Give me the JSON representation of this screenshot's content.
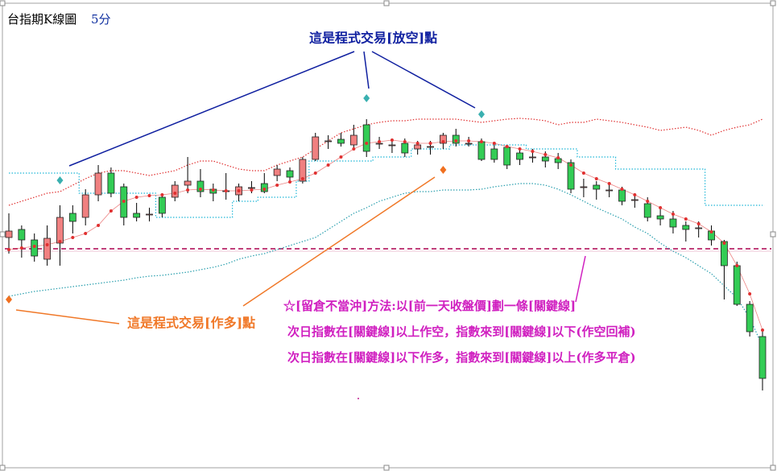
{
  "chart_data": {
    "type": "candlestick",
    "title": "台指期K線圖",
    "subtitle": "5分",
    "annotations": {
      "short_point": "這是程式交易[放空]點",
      "long_point": "這是程式交易[作多]點",
      "method": "☆[留倉不當沖]方法:以[前一天收盤價]劃一條[關鍵線]",
      "rule_short": "次日指數在[關鍵線]以上作空，指數來到[關鍵線]以下(作空回補)",
      "rule_long": "次日指數在[關鍵線]以下作多，指數來到[關鍵線]以上(作多平倉)"
    },
    "ylim": [
      0,
      590
    ],
    "categories": [
      null,
      null,
      null,
      null,
      null,
      null,
      null,
      null,
      null,
      null,
      null,
      null,
      null,
      null,
      null,
      null,
      null,
      null,
      null,
      null,
      null,
      null,
      null,
      null,
      null,
      null,
      null,
      null,
      null,
      null,
      null,
      null,
      null,
      null,
      null,
      null,
      null,
      null,
      null,
      null,
      null,
      null,
      null,
      null,
      null,
      null,
      null,
      null,
      null,
      null,
      null,
      null,
      null,
      null,
      null,
      null,
      null,
      null,
      null,
      null
    ],
    "up_color": "#f08080",
    "down_color": "#33cc55",
    "open": [
      295,
      305,
      292,
      268,
      288,
      325,
      320,
      348,
      375,
      358,
      325,
      324,
      345,
      345,
      360,
      365,
      355,
      353,
      348,
      357,
      362,
      372,
      378,
      365,
      392,
      415,
      417,
      410,
      435,
      412,
      410,
      412,
      405,
      408,
      412,
      422,
      412,
      414,
      405,
      407,
      400,
      395,
      395,
      393,
      388,
      358,
      360,
      354,
      354,
      342,
      337,
      322,
      318,
      310,
      307,
      303,
      290,
      260,
      212,
      172
    ],
    "high": [
      325,
      310,
      300,
      310,
      335,
      335,
      355,
      385,
      382,
      362,
      338,
      332,
      350,
      365,
      395,
      380,
      362,
      375,
      362,
      365,
      375,
      385,
      382,
      395,
      425,
      422,
      425,
      435,
      442,
      420,
      418,
      418,
      415,
      415,
      425,
      430,
      420,
      418,
      410,
      410,
      405,
      405,
      402,
      400,
      392,
      368,
      365,
      362,
      358,
      350,
      345,
      330,
      328,
      315,
      315,
      310,
      292,
      265,
      216,
      178
    ],
    "low": [
      275,
      270,
      265,
      260,
      260,
      300,
      310,
      340,
      345,
      310,
      315,
      315,
      320,
      340,
      350,
      345,
      340,
      342,
      340,
      350,
      350,
      365,
      365,
      362,
      390,
      405,
      408,
      405,
      395,
      405,
      400,
      395,
      398,
      398,
      405,
      408,
      408,
      390,
      388,
      380,
      385,
      388,
      382,
      380,
      350,
      345,
      342,
      345,
      335,
      332,
      315,
      310,
      300,
      290,
      295,
      285,
      218,
      210,
      172,
      105
    ],
    "close": [
      303,
      292,
      272,
      294,
      320,
      315,
      348,
      375,
      350,
      320,
      320,
      324,
      325,
      360,
      365,
      352,
      350,
      353,
      358,
      357,
      352,
      380,
      370,
      392,
      420,
      415,
      412,
      422,
      402,
      412,
      410,
      400,
      410,
      408,
      422,
      412,
      412,
      392,
      392,
      385,
      392,
      395,
      390,
      388,
      355,
      358,
      355,
      354,
      340,
      342,
      320,
      318,
      308,
      305,
      307,
      292,
      260,
      212,
      178,
      120
    ],
    "overlays": [
      {
        "color": "#e03030",
        "dots": true,
        "values": [
          280,
          282,
          284,
          286,
          290,
          295,
          300,
          310,
          328,
          340,
          345,
          347,
          348,
          350,
          354,
          355,
          354,
          353,
          353,
          354,
          355,
          360,
          364,
          368,
          375,
          385,
          395,
          405,
          412,
          414,
          416,
          414,
          412,
          412,
          414,
          415,
          415,
          414,
          412,
          408,
          405,
          402,
          398,
          394,
          385,
          375,
          368,
          362,
          355,
          348,
          340,
          332,
          324,
          318,
          312,
          302,
          288,
          260,
          225,
          180
        ]
      },
      {
        "color": "#e03030",
        "dots": false,
        "values": [
          335,
          340,
          345,
          350,
          352,
          360,
          368,
          375,
          378,
          378,
          375,
          372,
          375,
          378,
          385,
          390,
          390,
          385,
          380,
          378,
          378,
          385,
          390,
          395,
          405,
          415,
          425,
          430,
          435,
          438,
          440,
          440,
          442,
          442,
          442,
          442,
          440,
          438,
          440,
          442,
          443,
          442,
          440,
          435,
          438,
          438,
          442,
          440,
          438,
          435,
          432,
          428,
          430,
          432,
          428,
          422,
          428,
          432,
          435,
          442
        ]
      },
      {
        "color": "#2a9fae",
        "dots": false,
        "values": [
          222,
          225,
          228,
          230,
          232,
          234,
          236,
          238,
          240,
          242,
          245,
          247,
          248,
          250,
          252,
          255,
          258,
          262,
          268,
          272,
          275,
          280,
          285,
          290,
          295,
          305,
          315,
          325,
          332,
          340,
          345,
          350,
          352,
          352,
          354,
          354,
          354,
          355,
          358,
          360,
          362,
          362,
          360,
          355,
          348,
          340,
          332,
          325,
          318,
          308,
          300,
          288,
          278,
          270,
          260,
          250,
          235,
          220,
          195,
          160
        ]
      },
      {
        "color": "#22b8d8",
        "dots": false,
        "step": true,
        "values": [
          375,
          375,
          375,
          375,
          375,
          375,
          350,
          350,
          350,
          350,
          350,
          350,
          320,
          320,
          320,
          320,
          320,
          320,
          340,
          340,
          345,
          345,
          345,
          365,
          390,
          390,
          390,
          390,
          390,
          395,
          395,
          395,
          405,
          405,
          405,
          410,
          410,
          410,
          410,
          410,
          410,
          405,
          405,
          405,
          405,
          395,
          395,
          395,
          380,
          380,
          380,
          380,
          380,
          380,
          380,
          335,
          335,
          335,
          335,
          335
        ]
      }
    ],
    "key_line": {
      "value": 281,
      "color": "#c0407a"
    },
    "short_signals": {
      "color": "#3ab0b0",
      "values": [
        null,
        null,
        null,
        null,
        366,
        null,
        null,
        null,
        null,
        null,
        null,
        null,
        null,
        null,
        null,
        null,
        null,
        null,
        null,
        null,
        null,
        null,
        null,
        null,
        null,
        null,
        null,
        null,
        468,
        null,
        null,
        null,
        null,
        null,
        null,
        null,
        null,
        448,
        null,
        null,
        null,
        null,
        null,
        null,
        null,
        null,
        null,
        null,
        null,
        null,
        null,
        null,
        null,
        null,
        null,
        null,
        null,
        null,
        null,
        null
      ]
    },
    "long_signals": {
      "color": "#f07020",
      "values": [
        218,
        null,
        null,
        null,
        null,
        null,
        null,
        null,
        null,
        null,
        null,
        null,
        null,
        null,
        null,
        null,
        null,
        null,
        null,
        null,
        null,
        null,
        null,
        null,
        null,
        null,
        null,
        null,
        null,
        null,
        null,
        null,
        null,
        null,
        379,
        null,
        null,
        null,
        null,
        null,
        null,
        null,
        null,
        null,
        null,
        null,
        null,
        null,
        null,
        null,
        null,
        null,
        null,
        null,
        null,
        null,
        null,
        null,
        null,
        null
      ]
    }
  }
}
